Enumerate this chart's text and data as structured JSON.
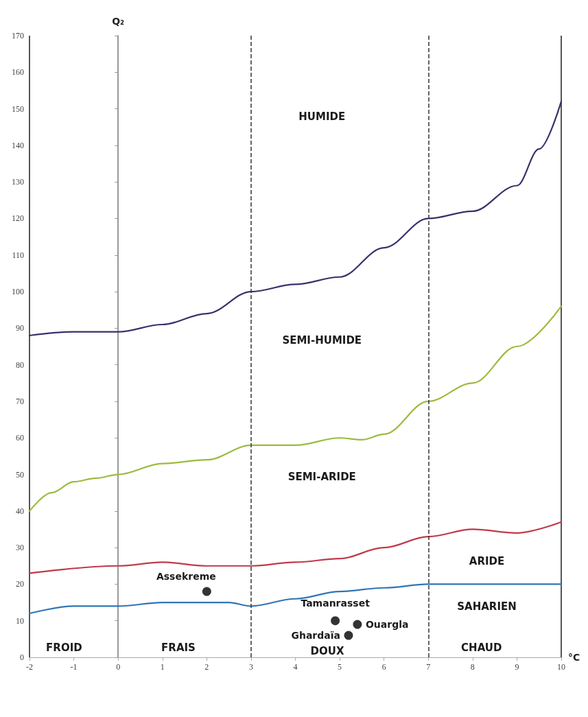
{
  "chart_data": {
    "type": "line",
    "xlabel": "°C",
    "ylabel": "Q₂",
    "xlim": [
      -2,
      10
    ],
    "xticks": [
      -2,
      -1,
      0,
      1,
      2,
      3,
      4,
      5,
      6,
      7,
      8,
      9,
      10
    ],
    "ylim": [
      0,
      170
    ],
    "yticks": [
      0,
      10,
      20,
      30,
      40,
      50,
      60,
      70,
      80,
      90,
      100,
      110,
      120,
      130,
      140,
      150,
      160,
      170
    ],
    "grid": false,
    "marker": "none",
    "line_style": "solid",
    "series": [
      {
        "color": "#3d2e6b",
        "x": [
          -2,
          -1,
          0,
          1,
          2,
          3,
          4,
          5,
          6,
          7,
          8,
          9,
          9.5,
          10
        ],
        "values": [
          88,
          89,
          89,
          91,
          94,
          100,
          102,
          104,
          112,
          120,
          122,
          129,
          139,
          152
        ]
      },
      {
        "color": "#9bbb3c",
        "x": [
          -2,
          -1.5,
          -1,
          -0.5,
          0,
          1,
          2,
          3,
          4,
          5,
          5.5,
          6,
          7,
          8,
          9,
          10
        ],
        "values": [
          40,
          45,
          48,
          49,
          50,
          53,
          54,
          58,
          58,
          60,
          59.5,
          61,
          70,
          75,
          85,
          96
        ]
      },
      {
        "color": "#c0394b",
        "x": [
          -2,
          0,
          1,
          2,
          3,
          4,
          5,
          6,
          7,
          8,
          9,
          10
        ],
        "values": [
          23,
          25,
          26,
          25,
          25,
          26,
          27,
          30,
          33,
          35,
          34,
          37
        ]
      },
      {
        "color": "#2e75b6",
        "x": [
          -2,
          -1,
          0,
          1,
          2,
          2.5,
          3,
          4,
          5,
          6,
          7,
          8,
          9,
          10
        ],
        "values": [
          12,
          14,
          14,
          15,
          15,
          15,
          14,
          16,
          18,
          19,
          20,
          20,
          20,
          20
        ]
      },
      {
        "type": "scatter",
        "color": "#000000",
        "marker": "circle",
        "x": [
          2,
          4.9,
          5.2,
          5.4
        ],
        "values": [
          18,
          10,
          6,
          9
        ]
      }
    ],
    "ref_lines": [
      {
        "axis": "x",
        "value": 3,
        "line_style": "dashed",
        "color": "#333333"
      },
      {
        "axis": "x",
        "value": 7,
        "line_style": "dashed",
        "color": "#333333"
      }
    ],
    "annotations": [
      "HUMIDE",
      "SEMI-HUMIDE",
      "SEMI-ARIDE",
      "ARIDE",
      "SAHARIEN",
      "FROID",
      "FRAIS",
      "DOUX",
      "CHAUD",
      {
        "text": "Assekreme",
        "x": 2,
        "y": 18
      },
      {
        "text": "Tamanrasset",
        "x": 4.9,
        "y": 10
      },
      {
        "text": "Ghardaïa",
        "x": 5.2,
        "y": 6
      },
      {
        "text": "Ouargla",
        "x": 5.4,
        "y": 9
      }
    ]
  }
}
